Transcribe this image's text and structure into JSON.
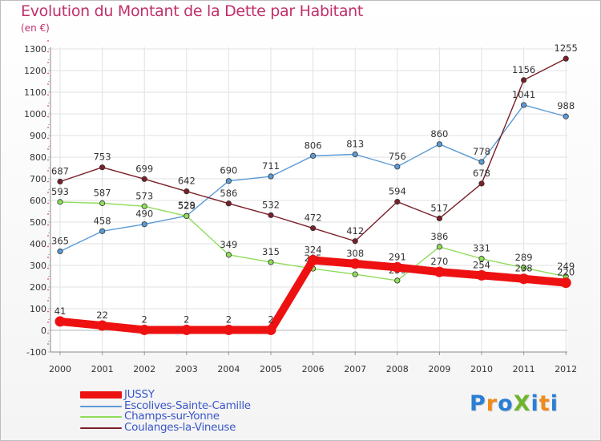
{
  "title": "Evolution du Montant de la Dette par Habitant",
  "unit": "(en €)",
  "brand": {
    "text": "ProXiti",
    "letter_colors": [
      "#2a7fd4",
      "#f08a1c",
      "#2a7fd4",
      "#6fb52c",
      "#2a7fd4",
      "#f08a1c",
      "#2a7fd4"
    ]
  },
  "chart_data": {
    "type": "line",
    "x": [
      "2000",
      "2001",
      "2002",
      "2003",
      "2004",
      "2005",
      "2006",
      "2007",
      "2008",
      "2009",
      "2010",
      "2011",
      "2012"
    ],
    "ylim": [
      -100,
      1300
    ],
    "yticks": [
      "-100",
      "0",
      "100",
      "200",
      "300",
      "400",
      "500",
      "600",
      "700",
      "800",
      "900",
      "1000",
      "1100",
      "1200",
      "1300"
    ],
    "grid": true,
    "legend_position": "bottom-left",
    "series": [
      {
        "name": "JUSSY",
        "color": "#ee1111",
        "highlight": true,
        "values": [
          41,
          22,
          2,
          2,
          2,
          2,
          324,
          308,
          291,
          270,
          254,
          238,
          220
        ]
      },
      {
        "name": "Escolives-Sainte-Camille",
        "color": "#5b9bd5",
        "values": [
          365,
          458,
          490,
          529,
          690,
          711,
          806,
          813,
          756,
          860,
          778,
          1041,
          988
        ]
      },
      {
        "name": "Champs-sur-Yonne",
        "color": "#8fdd5a",
        "values": [
          593,
          587,
          573,
          528,
          349,
          315,
          285,
          259,
          230,
          386,
          331,
          289,
          249
        ]
      },
      {
        "name": "Coulanges-la-Vineuse",
        "color": "#7a1f28",
        "values": [
          687,
          753,
          699,
          642,
          586,
          532,
          472,
          412,
          594,
          517,
          678,
          1156,
          1255
        ]
      }
    ]
  }
}
